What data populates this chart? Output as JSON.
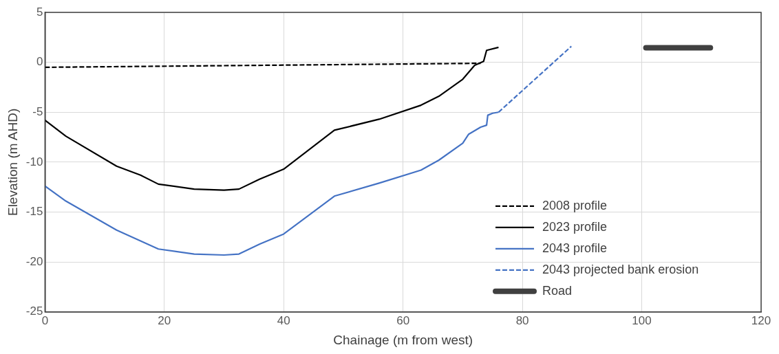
{
  "chart_data": {
    "type": "line",
    "xlabel": "Chainage (m from west)",
    "ylabel": "Elevation (m AHD)",
    "xlim": [
      0,
      120
    ],
    "xticks": [
      0,
      20,
      40,
      60,
      80,
      100,
      120
    ],
    "ylim": [
      -25,
      5
    ],
    "yticks": [
      -25,
      -20,
      -15,
      -10,
      -5,
      0,
      5
    ],
    "grid": true,
    "legend": "bottom right",
    "marker": "none",
    "series": [
      {
        "name": "2008 profile",
        "color": "#000000",
        "line_style": "dashed",
        "x": [
          0,
          73
        ],
        "values": [
          -0.5,
          -0.1
        ]
      },
      {
        "name": "2023 profile",
        "color": "#000000",
        "line_style": "solid",
        "x": [
          0,
          3.5,
          12,
          16,
          19,
          25,
          30,
          32.5,
          36,
          40,
          48.5,
          56,
          63,
          66,
          70,
          72,
          73.5,
          74,
          76
        ],
        "values": [
          -5.8,
          -7.4,
          -10.4,
          -11.3,
          -12.2,
          -12.7,
          -12.8,
          -12.7,
          -11.7,
          -10.7,
          -6.8,
          -5.7,
          -4.3,
          -3.4,
          -1.7,
          -0.3,
          0.1,
          1.2,
          1.5
        ]
      },
      {
        "name": "2043 profile",
        "color": "#4472c4",
        "line_style": "solid",
        "x": [
          0,
          3.5,
          12,
          19,
          25,
          30,
          32.5,
          36,
          40,
          48.5,
          56,
          63,
          66,
          70,
          71,
          73,
          74,
          74.2,
          75,
          76
        ],
        "values": [
          -12.4,
          -13.9,
          -16.8,
          -18.7,
          -19.2,
          -19.3,
          -19.2,
          -18.2,
          -17.2,
          -13.4,
          -12.1,
          -10.8,
          -9.8,
          -8.1,
          -7.2,
          -6.5,
          -6.3,
          -5.3,
          -5.1,
          -5.0
        ]
      },
      {
        "name": "2043 projected bank erosion",
        "color": "#4472c4",
        "line_style": "dashed",
        "x": [
          76,
          88.2
        ],
        "values": [
          -5.0,
          1.6
        ]
      },
      {
        "name": "Road",
        "color": "#404040",
        "line_style": "solid",
        "x": [
          100.7,
          111.5
        ],
        "values": [
          1.45,
          1.45
        ]
      }
    ]
  }
}
